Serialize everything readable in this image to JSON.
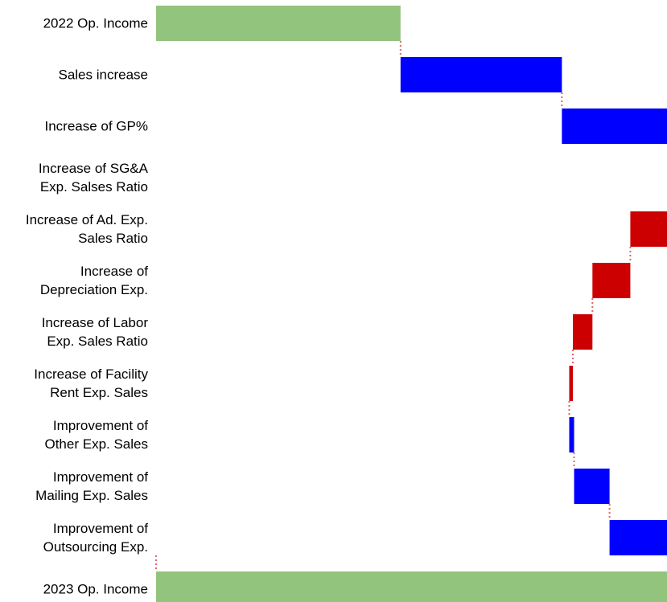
{
  "chart_data": {
    "type": "waterfall",
    "categories": [
      "2022 Op. Income",
      "Sales increase",
      "Increase of GP%",
      "Increase of SG&A\nExp. Salses Ratio",
      "Increase of Ad. Exp.\nSales Ratio",
      "Increase of\nDepreciation Exp.",
      "Increase of Labor\nExp. Sales Ratio",
      "Increase of Facility\nRent Exp. Sales",
      "Improvement of\nOther Exp. Sales",
      "Improvement of\nMailing Exp. Sales",
      "Improvement of\nOutsourcing Exp.",
      "2023 Op. Income"
    ],
    "values": [
      100,
      66,
      59,
      -1,
      -30,
      -15.5,
      -8,
      -1.5,
      2,
      14.5,
      44.5,
      230
    ],
    "measure": [
      "total",
      "relative",
      "relative",
      "relative",
      "relative",
      "relative",
      "relative",
      "relative",
      "relative",
      "relative",
      "relative",
      "total"
    ],
    "colors": {
      "total": "#93c47d",
      "increase": "#0000ff",
      "decrease": "#cc0000",
      "connector": "#e06666"
    },
    "xlim": [
      0,
      209
    ]
  }
}
